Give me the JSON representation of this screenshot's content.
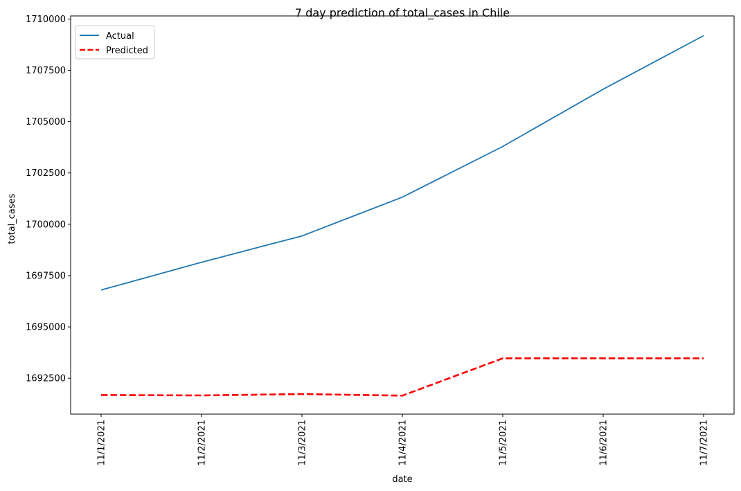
{
  "chart_data": {
    "type": "line",
    "title": "7 day prediction of total_cases in Chile",
    "xlabel": "date",
    "ylabel": "total_cases",
    "categories": [
      "11/1/2021",
      "11/2/2021",
      "11/3/2021",
      "11/4/2021",
      "11/5/2021",
      "11/6/2021",
      "11/7/2021"
    ],
    "ylim": [
      1690750,
      1710150
    ],
    "yticks": [
      1692500,
      1695000,
      1697500,
      1700000,
      1702500,
      1705000,
      1707500,
      1710000
    ],
    "grid": false,
    "legend": "top-left",
    "series": [
      {
        "name": "Actual",
        "color": "#1f77b4",
        "style": "solid",
        "values": [
          1696800,
          1698150,
          1699430,
          1701320,
          1703790,
          1706580,
          1709190
        ]
      },
      {
        "name": "Predicted",
        "color": "#ff0000",
        "style": "dashed",
        "values": [
          1691680,
          1691660,
          1691730,
          1691650,
          1693470,
          1693470,
          1693470
        ]
      }
    ]
  }
}
